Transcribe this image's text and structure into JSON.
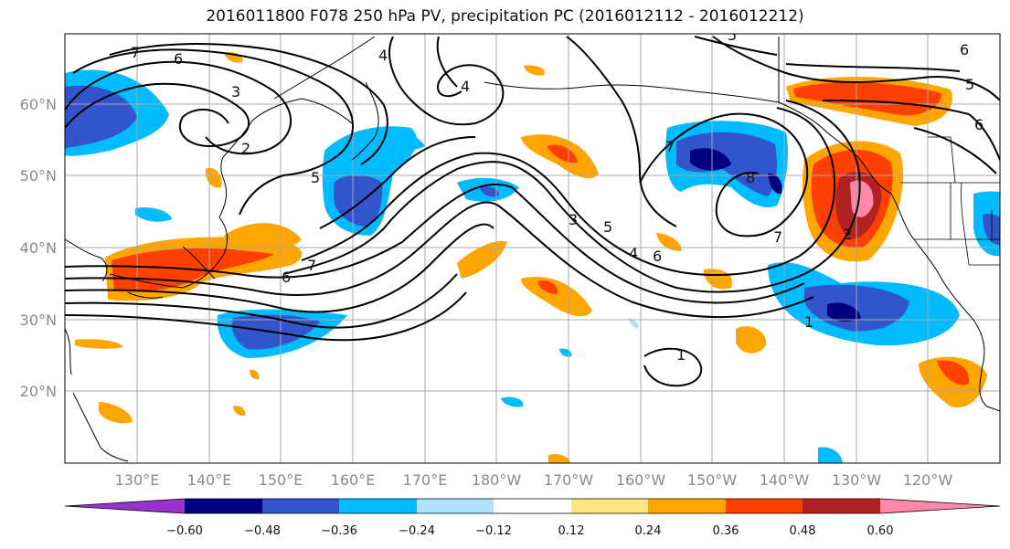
{
  "title": "2016011800 F078 250 hPa PV, precipitation PC (2016012112 - 2016012212)",
  "lat_labels": [
    "60°N",
    "50°N",
    "40°N",
    "30°N",
    "20°N"
  ],
  "lon_labels": [
    "130°E",
    "140°E",
    "150°E",
    "160°E",
    "170°E",
    "180°W",
    "170°W",
    "160°W",
    "150°W",
    "140°W",
    "130°W",
    "120°W"
  ],
  "colorbar": {
    "ticks": [
      "−0.60",
      "−0.48",
      "−0.36",
      "−0.24",
      "−0.12",
      "0.12",
      "0.24",
      "0.36",
      "0.48",
      "0.60"
    ],
    "colors": [
      "#9933cc",
      "#000080",
      "#3355cc",
      "#00bbff",
      "#b0e0ff",
      "#ffffff",
      "#ffe680",
      "#ffa500",
      "#ff4000",
      "#b22222",
      "#ff88aa"
    ]
  },
  "contour_labels": [
    "7",
    "6",
    "3",
    "2",
    "5",
    "4",
    "7",
    "6",
    "3",
    "5",
    "4",
    "6",
    "7",
    "8",
    "7",
    "2",
    "1",
    "1",
    "5",
    "6",
    "5",
    "6",
    "4"
  ]
}
